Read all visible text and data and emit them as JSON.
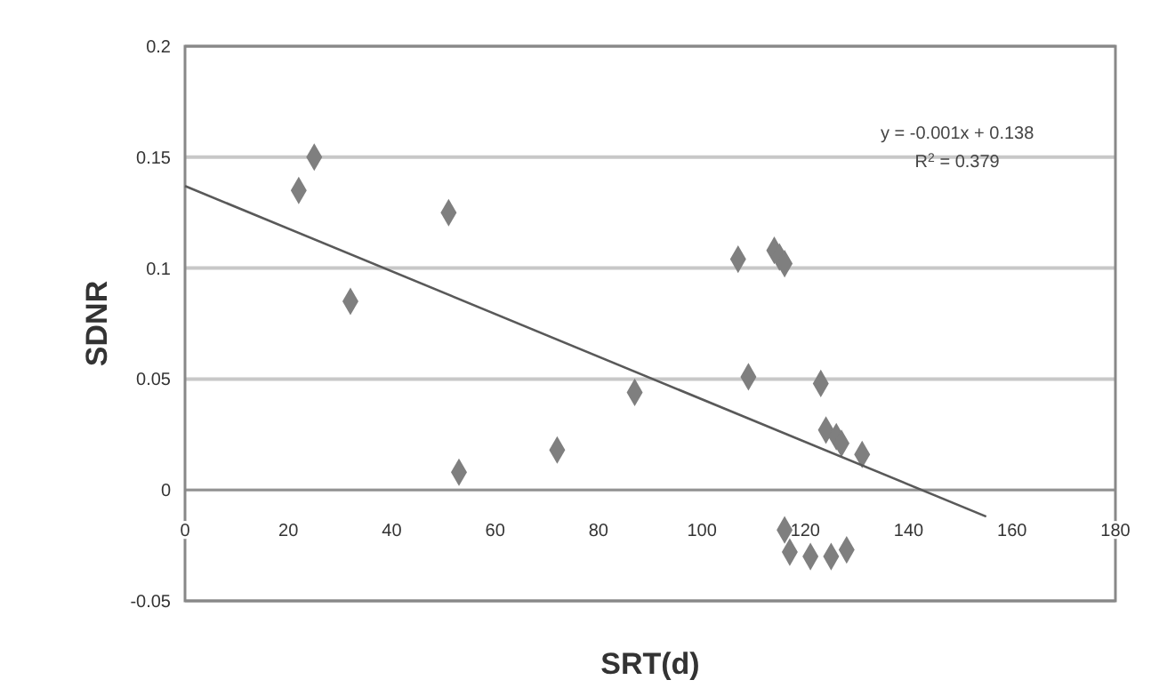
{
  "chart_data": {
    "type": "scatter",
    "xlabel": "SRT(d)",
    "ylabel": "SDNR",
    "xlim": [
      0,
      180
    ],
    "xticks": [
      0,
      20,
      40,
      60,
      80,
      100,
      120,
      140,
      160,
      180
    ],
    "ylim": [
      -0.05,
      0.2
    ],
    "yticks": [
      -0.05,
      0,
      0.05,
      0.1,
      0.15,
      0.2
    ],
    "grid": "y",
    "series": [
      {
        "marker": "diamond",
        "color": "#7f7f7f",
        "x": [
          22,
          25,
          32,
          51,
          53,
          72,
          87,
          107,
          109,
          114,
          115,
          116,
          116,
          117,
          121,
          123,
          124,
          125,
          126,
          127,
          128,
          131
        ],
        "values": [
          0.135,
          0.15,
          0.085,
          0.125,
          0.008,
          0.018,
          0.044,
          0.104,
          0.051,
          0.108,
          0.105,
          0.102,
          -0.018,
          -0.028,
          -0.03,
          0.048,
          0.027,
          -0.03,
          0.024,
          0.021,
          -0.027,
          0.016
        ]
      },
      {
        "type": "line",
        "color": "#595959",
        "x": [
          0,
          155
        ],
        "values": [
          0.137,
          -0.012
        ]
      }
    ],
    "annotations": [
      "y = -0.001x + 0.138",
      "R$^{2}$ = 0.379"
    ]
  }
}
